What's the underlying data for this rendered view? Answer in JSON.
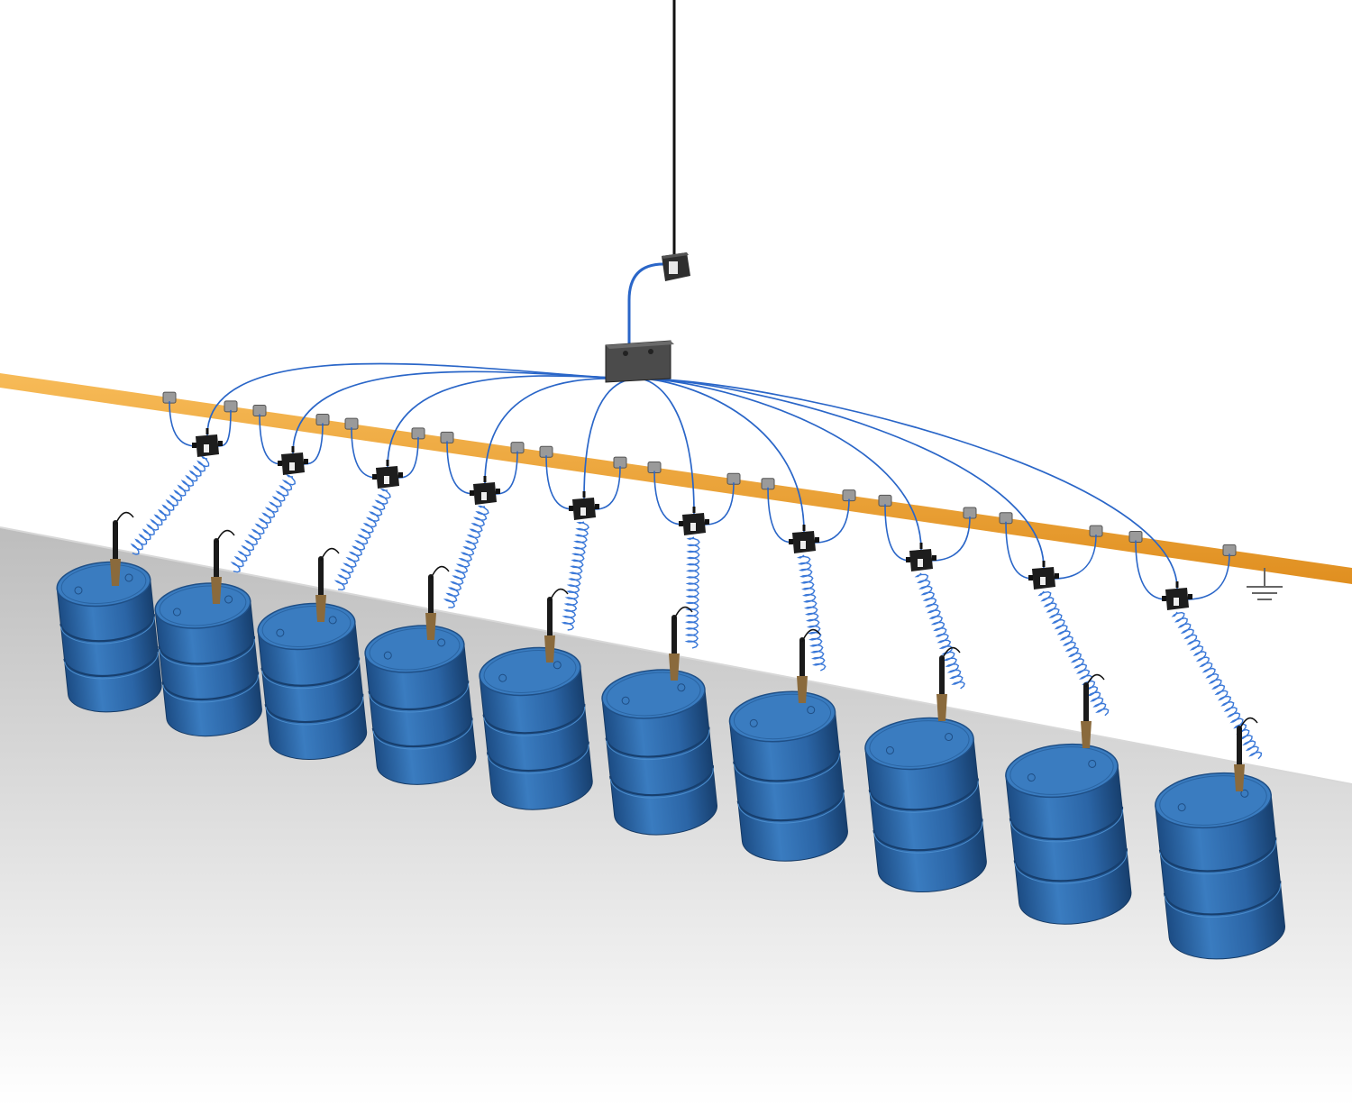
{
  "scene": {
    "type": "grounding-system-illustration",
    "colors": {
      "wall": "#ffffff",
      "floor_top": "#c9c9c9",
      "floor_bottom": "#ffffff",
      "ground_bar": "#f2a53a",
      "cable": "#2a66c8",
      "coil_cable": "#3a78d8",
      "drum": "#2f6fb2",
      "drum_dark": "#1f4f86",
      "clamp_body": "#1a1a1a",
      "clamp_jaw": "#8a6a3c",
      "junction_box": "#4a4a4a",
      "monitor_box": "#3a3a3a",
      "lug": "#9a9a9a"
    },
    "icons": {
      "ground": "ground-symbol-icon"
    },
    "counts": {
      "drums": 10,
      "clamp_modules": 10
    }
  }
}
